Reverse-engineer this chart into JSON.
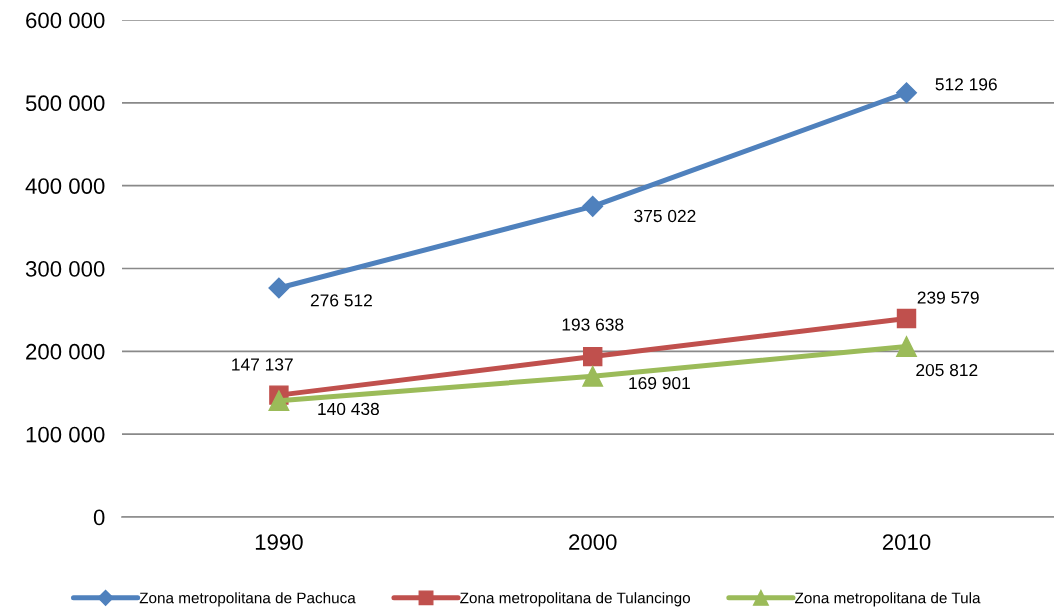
{
  "chart_data": {
    "type": "line",
    "categories": [
      "1990",
      "2000",
      "2010"
    ],
    "ylim": [
      0,
      600000
    ],
    "yticks": [
      0,
      {
        "value": 100000,
        "label": "100 000"
      },
      {
        "value": 200000,
        "label": "200 000"
      },
      {
        "value": 300000,
        "label": "300 000"
      },
      {
        "value": 400000,
        "label": "400 000"
      },
      {
        "value": 500000,
        "label": "500 000"
      },
      {
        "value": 600000,
        "label": "600 000"
      }
    ],
    "grid": "y",
    "legend": "bottom",
    "line_style": "solid",
    "series": [
      {
        "name": "Zona metropolitana de Pachuca",
        "color": "#4f81bd",
        "marker": "diamond",
        "values": [
          276512,
          375022,
          512196
        ],
        "value_labels": [
          "276 512",
          "375 022",
          "512 196"
        ]
      },
      {
        "name": "Zona metropolitana de Tulancingo",
        "color": "#c0504d",
        "marker": "square",
        "values": [
          147137,
          193638,
          239579
        ],
        "value_labels": [
          "147 137",
          "193 638",
          "239 579"
        ]
      },
      {
        "name": "Zona metropolitana de Tula",
        "color": "#9bbb59",
        "marker": "triangle",
        "values": [
          140438,
          169901,
          205812
        ],
        "value_labels": [
          "140 438",
          "169 901",
          "205 812"
        ]
      }
    ]
  }
}
